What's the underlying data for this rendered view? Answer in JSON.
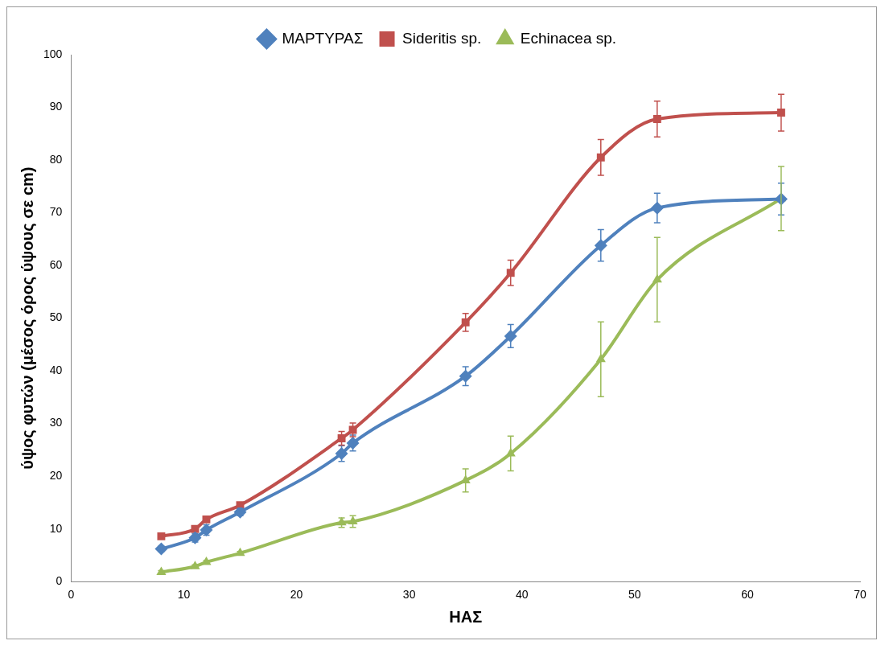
{
  "chart_data": {
    "type": "line",
    "xlabel": "ΗΑΣ",
    "ylabel": "ύψος φυτών (μέσος όρος ύψους σε cm)",
    "x": [
      8,
      11,
      12,
      15,
      24,
      25,
      35,
      39,
      47,
      52,
      63
    ],
    "xlim": [
      0,
      70
    ],
    "xticks": [
      0,
      10,
      20,
      30,
      40,
      50,
      60,
      70
    ],
    "ylim": [
      0,
      100
    ],
    "yticks": [
      0,
      10,
      20,
      30,
      40,
      50,
      60,
      70,
      80,
      90,
      100
    ],
    "grid": false,
    "legend": "top",
    "series": [
      {
        "name": "ΜΑΡΤΥΡΑΣ",
        "color": "#4f81bd",
        "marker": "diamond",
        "values": [
          6.2,
          8.3,
          9.8,
          13.2,
          24.3,
          26.3,
          39,
          46.6,
          63.8,
          70.9,
          72.6
        ],
        "errors": [
          0.5,
          0.8,
          1,
          0.7,
          1.5,
          1.5,
          1.8,
          2.2,
          3,
          2.8,
          3
        ]
      },
      {
        "name": "Sideritis sp.",
        "color": "#c0504d",
        "marker": "square",
        "values": [
          8.6,
          10,
          11.8,
          14.5,
          27.2,
          28.8,
          49.2,
          58.6,
          80.5,
          87.8,
          89
        ],
        "errors": [
          0.3,
          0.3,
          0.3,
          0.3,
          1.3,
          1.3,
          1.7,
          2.4,
          3.4,
          3.4,
          3.5
        ]
      },
      {
        "name": "Echinacea sp.",
        "color": "#9bbb59",
        "marker": "triangle",
        "values": [
          1.8,
          2.9,
          3.7,
          5.4,
          11.2,
          11.4,
          19.2,
          24.3,
          42.2,
          57.3,
          72.7
        ],
        "errors": [
          0.3,
          0.3,
          0.3,
          0.3,
          0.9,
          1.1,
          2.2,
          3.3,
          7.1,
          8,
          6.1
        ]
      }
    ]
  }
}
